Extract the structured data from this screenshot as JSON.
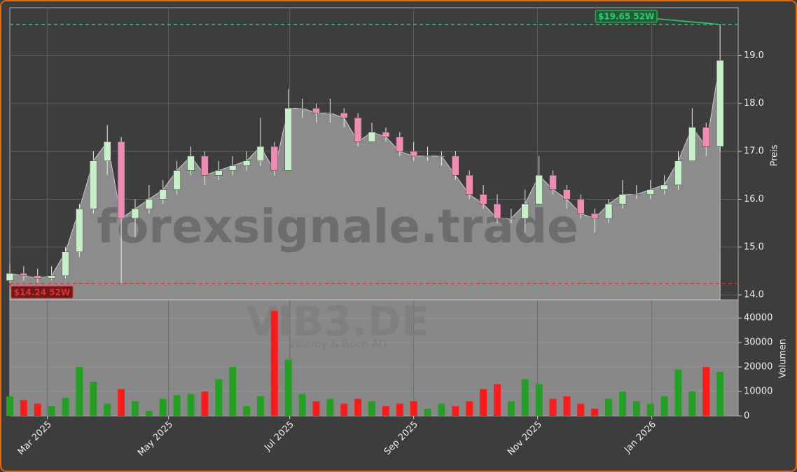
{
  "chart_data": {
    "type": "candlestick",
    "watermark": "forexsignale.trade",
    "symbol": "VIB3.DE",
    "company": "Villeroy & Boch AG",
    "y_label": "Preis",
    "y2_label": "Volumen",
    "xlim": [
      0,
      52.3
    ],
    "xticks": [
      {
        "value": 2.7,
        "label": "Mar 2025"
      },
      {
        "value": 11.4,
        "label": "May 2025"
      },
      {
        "value": 20.1,
        "label": "Jul 2025"
      },
      {
        "value": 29.0,
        "label": "Sep 2025"
      },
      {
        "value": 37.9,
        "label": "Nov 2025"
      },
      {
        "value": 46.1,
        "label": "Jan 2026"
      }
    ],
    "ylim": [
      13.9,
      20.0
    ],
    "yticks": [
      {
        "value": 14,
        "label": "14.0"
      },
      {
        "value": 15,
        "label": "15.0"
      },
      {
        "value": 16,
        "label": "16.0"
      },
      {
        "value": 17,
        "label": "17.0"
      },
      {
        "value": 18,
        "label": "18.0"
      },
      {
        "value": 19,
        "label": "19.0"
      }
    ],
    "y2lim": [
      0,
      47500
    ],
    "y2ticks": [
      0,
      10000,
      20000,
      30000,
      40000
    ],
    "grid": true,
    "up_color": "#22a022",
    "down_color": "#ff1a1a",
    "area_color": "#8c8c8c",
    "open": [
      14.3,
      14.45,
      14.4,
      14.35,
      14.4,
      14.9,
      15.8,
      16.8,
      17.2,
      15.6,
      15.8,
      16.0,
      16.2,
      16.6,
      16.9,
      16.5,
      16.6,
      16.7,
      16.8,
      17.1,
      16.6,
      17.9,
      17.9,
      17.8,
      17.8,
      17.7,
      17.2,
      17.4,
      17.3,
      17.0,
      16.9,
      16.9,
      16.9,
      16.5,
      16.1,
      15.9,
      15.6,
      15.6,
      15.9,
      16.5,
      16.2,
      16.0,
      15.7,
      15.6,
      15.9,
      16.1,
      16.1,
      16.2,
      16.3,
      16.8,
      17.5,
      17.1
    ],
    "high": [
      14.65,
      14.6,
      14.55,
      14.6,
      15.0,
      15.9,
      17.0,
      17.55,
      17.3,
      16.0,
      16.3,
      16.4,
      16.8,
      17.1,
      17.0,
      16.8,
      16.9,
      17.0,
      17.7,
      17.2,
      18.3,
      18.1,
      18.0,
      18.1,
      17.9,
      17.8,
      17.6,
      17.5,
      17.4,
      17.2,
      17.1,
      17.0,
      17.0,
      16.6,
      16.3,
      16.1,
      15.8,
      16.2,
      16.9,
      16.6,
      16.3,
      16.1,
      15.8,
      16.0,
      16.4,
      16.3,
      16.4,
      16.5,
      17.0,
      17.9,
      17.6,
      19.65
    ],
    "low": [
      14.24,
      14.3,
      14.25,
      14.3,
      14.35,
      14.8,
      15.7,
      16.5,
      14.25,
      15.2,
      15.7,
      15.9,
      16.1,
      16.5,
      16.3,
      16.4,
      16.5,
      16.6,
      16.7,
      16.5,
      16.6,
      17.7,
      17.6,
      17.6,
      17.5,
      17.1,
      17.2,
      17.2,
      16.9,
      16.8,
      16.8,
      16.7,
      16.4,
      16.0,
      15.8,
      15.5,
      15.5,
      15.3,
      15.9,
      16.1,
      15.8,
      15.6,
      15.3,
      15.5,
      15.8,
      16.0,
      16.0,
      16.1,
      16.2,
      16.8,
      16.9,
      17.0
    ],
    "close": [
      14.45,
      14.4,
      14.35,
      14.4,
      14.9,
      15.8,
      16.8,
      17.2,
      15.6,
      15.8,
      16.0,
      16.2,
      16.6,
      16.9,
      16.5,
      16.6,
      16.7,
      16.8,
      17.1,
      16.6,
      17.9,
      17.9,
      17.8,
      17.8,
      17.7,
      17.2,
      17.4,
      17.3,
      17.0,
      16.9,
      16.9,
      16.9,
      16.5,
      16.1,
      15.9,
      15.6,
      15.6,
      15.9,
      16.5,
      16.2,
      16.0,
      15.7,
      15.6,
      15.9,
      16.1,
      16.1,
      16.2,
      16.3,
      16.8,
      17.5,
      17.1,
      18.9
    ],
    "volume": [
      8000,
      6500,
      5000,
      4000,
      7500,
      20000,
      14000,
      5000,
      11000,
      6000,
      2000,
      7000,
      8500,
      9000,
      10000,
      15000,
      20000,
      4000,
      8000,
      43000,
      23000,
      9000,
      6000,
      7000,
      5000,
      7000,
      6000,
      4000,
      5000,
      6000,
      3000,
      5000,
      4000,
      6000,
      11000,
      13000,
      6000,
      15000,
      13000,
      7000,
      8000,
      5000,
      3000,
      7000,
      10000,
      6000,
      5000,
      8000,
      19000,
      10000,
      20000,
      18000
    ],
    "annotations": [
      {
        "text": "$19.65 52W",
        "value": 19.65,
        "index": 51,
        "color": "#2ecc71"
      },
      {
        "text": "$14.24 52W",
        "value": 14.24,
        "index": 0,
        "color": "#e03030"
      }
    ]
  }
}
